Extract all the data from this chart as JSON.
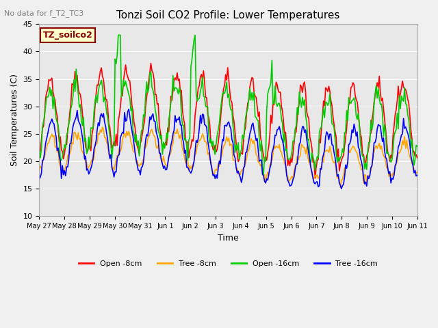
{
  "title": "Tonzi Soil CO2 Profile: Lower Temperatures",
  "subtitle": "No data for f_T2_TC3",
  "ylabel": "Soil Temperatures (C)",
  "xlabel": "Time",
  "ylim": [
    10,
    45
  ],
  "yticks": [
    10,
    15,
    20,
    25,
    30,
    35,
    40,
    45
  ],
  "series": {
    "open_8cm": {
      "label": "Open -8cm",
      "color": "#ff0000"
    },
    "tree_8cm": {
      "label": "Tree -8cm",
      "color": "#ffa500"
    },
    "open_16cm": {
      "label": "Open -16cm",
      "color": "#00cc00"
    },
    "tree_16cm": {
      "label": "Tree -16cm",
      "color": "#0000ff"
    }
  },
  "xtick_labels": [
    "May 27",
    "May 28",
    "May 29",
    "May 30",
    "May 31",
    "Jun 1",
    "Jun 2",
    "Jun 3",
    "Jun 4",
    "Jun 5",
    "Jun 6",
    "Jun 7",
    "Jun 8",
    "Jun 9",
    "Jun 10",
    "Jun 11"
  ],
  "annotation_text": "TZ_soilco2"
}
